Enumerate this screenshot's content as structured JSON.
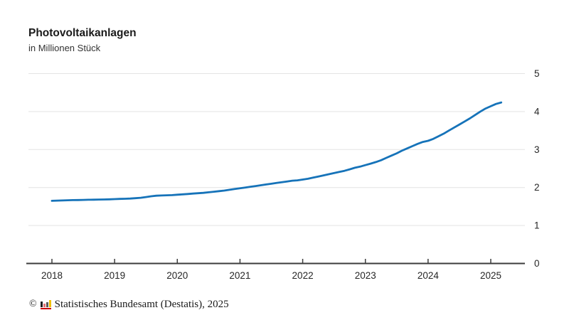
{
  "header": {
    "title": "Photovoltaikanlagen",
    "subtitle": "in Millionen Stück"
  },
  "footer": {
    "copyright": "©",
    "logo_icon": "destatis-bar-chart-icon",
    "text": "Statistisches Bundesamt (Destatis), 2025"
  },
  "colors": {
    "line": "#1673b9",
    "grid": "#e3e3e3",
    "axis": "#3c3c3c",
    "text": "#262626",
    "background": "#ffffff"
  },
  "chart_data": {
    "type": "line",
    "title": "Photovoltaikanlagen",
    "subtitle": "in Millionen Stück",
    "ylabel": "Millionen Stück",
    "xlabel": "",
    "y_axis_side": "right",
    "ylim": [
      0,
      5
    ],
    "xlim": [
      2017.6,
      2025.55
    ],
    "y_ticks": [
      0,
      1,
      2,
      3,
      4,
      5
    ],
    "x_ticks": [
      2018,
      2019,
      2020,
      2021,
      2022,
      2023,
      2024,
      2025
    ],
    "grid": "horizontal-only",
    "legend": "none",
    "x_start": 2018.0,
    "x_step": 0.0833333,
    "frequency": "monthly",
    "series": [
      {
        "name": "Photovoltaikanlagen",
        "values": [
          1.65,
          1.655,
          1.66,
          1.664,
          1.668,
          1.671,
          1.674,
          1.677,
          1.68,
          1.683,
          1.686,
          1.69,
          1.694,
          1.7,
          1.705,
          1.71,
          1.72,
          1.73,
          1.75,
          1.77,
          1.785,
          1.79,
          1.795,
          1.8,
          1.81,
          1.82,
          1.83,
          1.84,
          1.85,
          1.86,
          1.875,
          1.89,
          1.905,
          1.92,
          1.94,
          1.96,
          1.98,
          2.0,
          2.02,
          2.04,
          2.06,
          2.08,
          2.1,
          2.12,
          2.14,
          2.16,
          2.18,
          2.19,
          2.21,
          2.23,
          2.26,
          2.29,
          2.32,
          2.35,
          2.38,
          2.41,
          2.44,
          2.48,
          2.52,
          2.55,
          2.59,
          2.63,
          2.67,
          2.72,
          2.78,
          2.84,
          2.9,
          2.97,
          3.03,
          3.09,
          3.15,
          3.2,
          3.23,
          3.28,
          3.35,
          3.42,
          3.5,
          3.58,
          3.66,
          3.74,
          3.82,
          3.91,
          4.0,
          4.08,
          4.14,
          4.2,
          4.24
        ]
      }
    ]
  }
}
